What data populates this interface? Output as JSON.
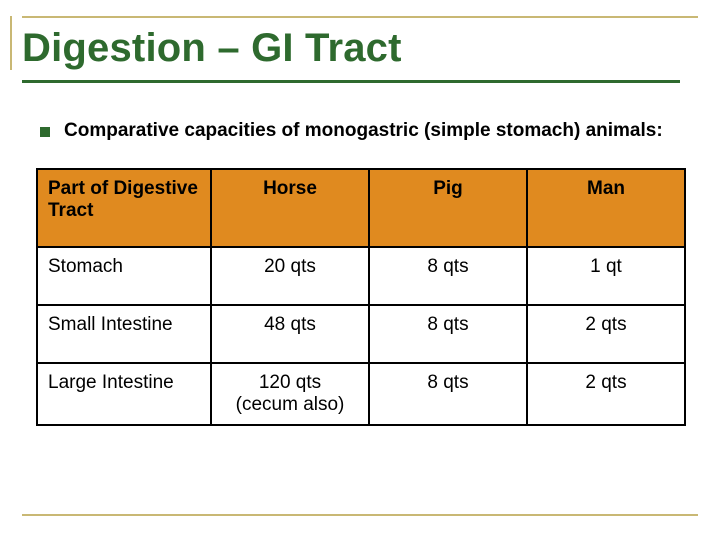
{
  "title": "Digestion – GI Tract",
  "bullet": "Comparative capacities of monogastric (simple stomach) animals:",
  "table": {
    "columns": [
      "Part of Digestive Tract",
      "Horse",
      "Pig",
      "Man"
    ],
    "rows": [
      {
        "label": "Stomach",
        "horse": "20 qts",
        "horse_sub": "",
        "pig": "8 qts",
        "man": "1 qt"
      },
      {
        "label": "Small Intestine",
        "horse": "48 qts",
        "horse_sub": "",
        "pig": "8 qts",
        "man": "2 qts"
      },
      {
        "label": "Large Intestine",
        "horse": "120 qts",
        "horse_sub": "(cecum also)",
        "pig": "8 qts",
        "man": "2 qts"
      }
    ],
    "header_bg": "#e08a1f",
    "border_color": "#000000",
    "title_color": "#2e6a2e",
    "accent_line": "#c9b874",
    "font_size_header": 19,
    "font_size_cell": 19
  }
}
